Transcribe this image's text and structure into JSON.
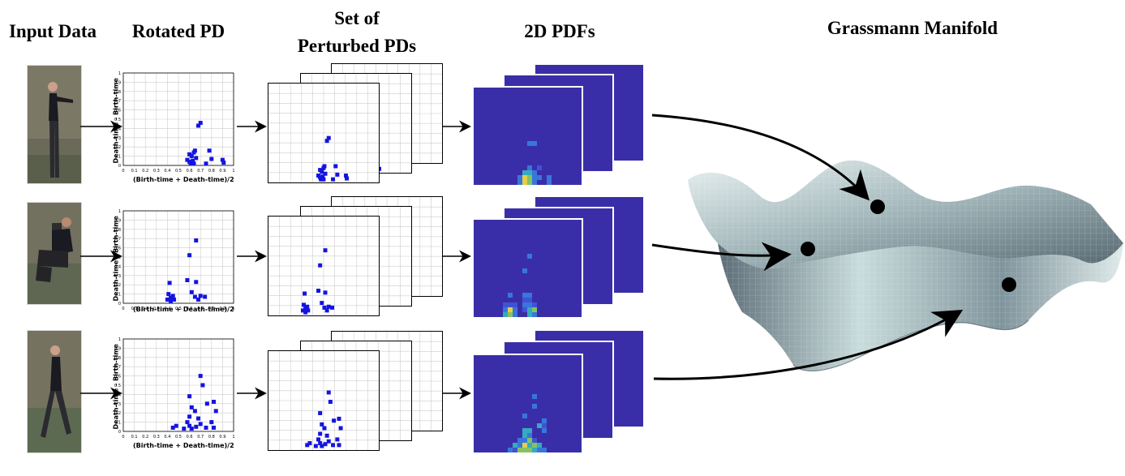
{
  "headers": {
    "input": "Input Data",
    "rotated": "Rotated PD",
    "perturbed_line1": "Set of",
    "perturbed_line2": "Perturbed PDs",
    "pdfs": "2D PDFs",
    "grassmann": "Grassmann Manifold"
  },
  "axis_labels": {
    "y": "Death-time - Birth-time",
    "x": "(Birth-time + Death-time)/2"
  },
  "ticks": [
    "0",
    "0.1",
    "0.2",
    "0.3",
    "0.4",
    "0.5",
    "0.6",
    "0.7",
    "0.8",
    "0.9",
    "1"
  ],
  "colors": {
    "points": "#1414e0",
    "pdf_bg": "#3a2ea8",
    "grid": "#cccccc",
    "manifold_light": "#e6f0f0",
    "manifold_dark": "#4a5a66"
  },
  "rows": [
    {
      "name": "row-standing",
      "points": [
        [
          0.68,
          0.43
        ],
        [
          0.7,
          0.46
        ],
        [
          0.6,
          0.12
        ],
        [
          0.62,
          0.1
        ],
        [
          0.64,
          0.14
        ],
        [
          0.65,
          0.16
        ],
        [
          0.58,
          0.06
        ],
        [
          0.6,
          0.04
        ],
        [
          0.63,
          0.05
        ],
        [
          0.61,
          0.02
        ],
        [
          0.66,
          0.08
        ],
        [
          0.78,
          0.16
        ],
        [
          0.8,
          0.07
        ],
        [
          0.9,
          0.06
        ],
        [
          0.91,
          0.03
        ],
        [
          0.75,
          0.02
        ],
        [
          0.64,
          0.02
        ]
      ]
    },
    {
      "name": "row-sitting",
      "points": [
        [
          0.66,
          0.68
        ],
        [
          0.6,
          0.52
        ],
        [
          0.58,
          0.25
        ],
        [
          0.66,
          0.23
        ],
        [
          0.42,
          0.22
        ],
        [
          0.41,
          0.1
        ],
        [
          0.43,
          0.06
        ],
        [
          0.45,
          0.08
        ],
        [
          0.4,
          0.04
        ],
        [
          0.43,
          0.02
        ],
        [
          0.62,
          0.12
        ],
        [
          0.65,
          0.07
        ],
        [
          0.7,
          0.08
        ],
        [
          0.74,
          0.07
        ],
        [
          0.68,
          0.04
        ],
        [
          0.46,
          0.04
        ]
      ]
    },
    {
      "name": "row-walking",
      "points": [
        [
          0.7,
          0.6
        ],
        [
          0.72,
          0.5
        ],
        [
          0.6,
          0.38
        ],
        [
          0.82,
          0.32
        ],
        [
          0.84,
          0.22
        ],
        [
          0.76,
          0.3
        ],
        [
          0.62,
          0.26
        ],
        [
          0.65,
          0.22
        ],
        [
          0.6,
          0.16
        ],
        [
          0.58,
          0.1
        ],
        [
          0.68,
          0.14
        ],
        [
          0.7,
          0.08
        ],
        [
          0.8,
          0.1
        ],
        [
          0.82,
          0.04
        ],
        [
          0.45,
          0.04
        ],
        [
          0.48,
          0.06
        ],
        [
          0.55,
          0.03
        ],
        [
          0.62,
          0.03
        ],
        [
          0.66,
          0.05
        ],
        [
          0.75,
          0.04
        ],
        [
          0.6,
          0.06
        ]
      ]
    }
  ]
}
